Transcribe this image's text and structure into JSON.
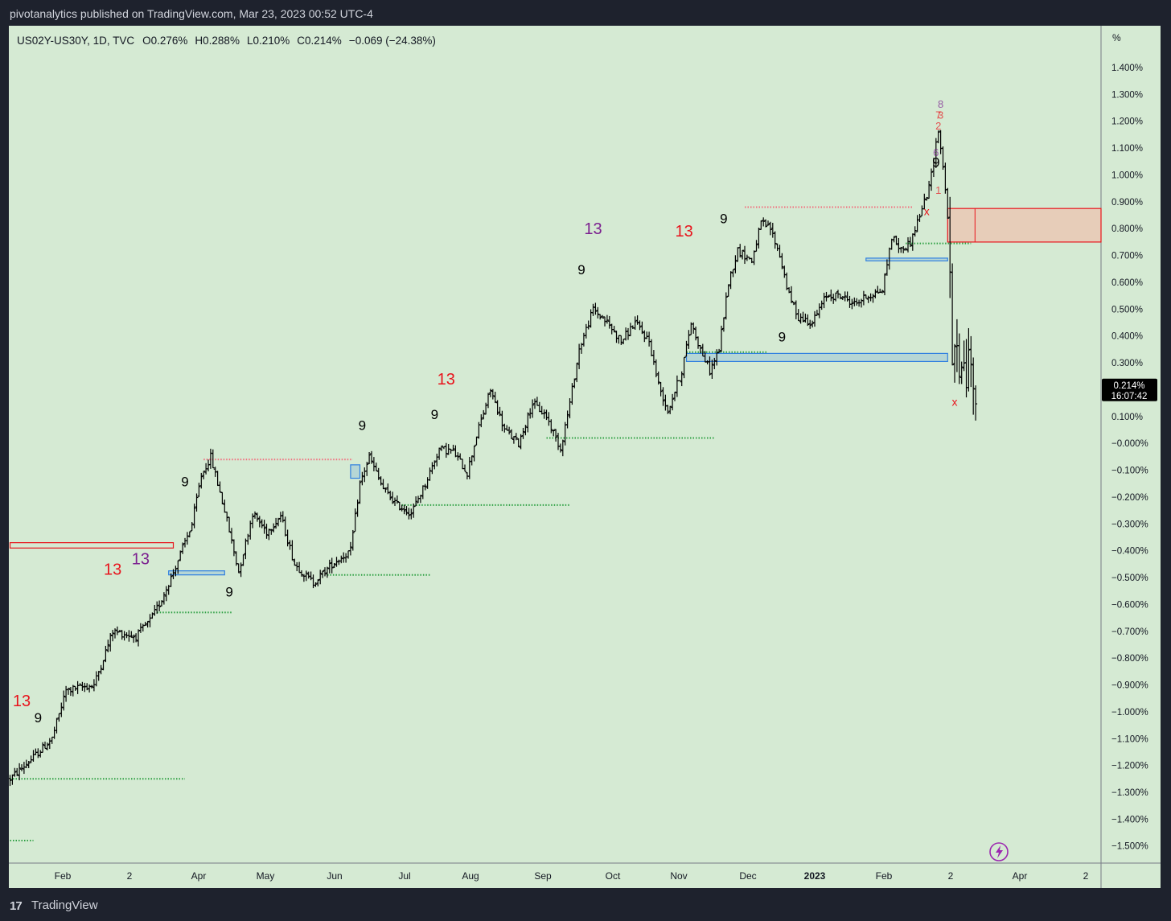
{
  "header": {
    "published": "pivotanalytics published on TradingView.com, Mar 23, 2023 00:52 UTC-4"
  },
  "footer": {
    "brand": "TradingView",
    "logo_icon": "tradingview-logo-icon"
  },
  "chart_data": {
    "type": "ohlc-bar",
    "symbol_line": {
      "symbol": "US02Y-US30Y, 1D, TVC",
      "open_label": "O",
      "open": "0.276%",
      "high_label": "H",
      "high": "0.288%",
      "low_label": "L",
      "low": "0.210%",
      "close_label": "C",
      "close": "0.214%",
      "change": "−0.069 (−24.38%)"
    },
    "price_axis": {
      "unit": "%",
      "ticks": [
        "1.400%",
        "1.300%",
        "1.200%",
        "1.100%",
        "1.000%",
        "0.900%",
        "0.800%",
        "0.700%",
        "0.600%",
        "0.500%",
        "0.400%",
        "0.300%",
        "0.200%",
        "0.100%",
        "−0.000%",
        "−0.100%",
        "−0.200%",
        "−0.300%",
        "−0.400%",
        "−0.500%",
        "−0.600%",
        "−0.700%",
        "−0.800%",
        "−0.900%",
        "−1.000%",
        "−1.100%",
        "−1.200%",
        "−1.300%",
        "−1.400%",
        "−1.500%"
      ],
      "ylim": [
        -1.56,
        1.55
      ]
    },
    "time_axis": {
      "ticks": [
        "Feb",
        "2",
        "Apr",
        "May",
        "Jun",
        "Jul",
        "Aug",
        "Sep",
        "Oct",
        "Nov",
        "Dec",
        "2023",
        "Feb",
        "2",
        "Apr",
        "2"
      ],
      "bold_tick": "2023"
    },
    "last_price": {
      "value": 0.214,
      "label": "0.214%",
      "countdown": "16:07:42"
    },
    "colors": {
      "background": "#d5ead3",
      "bars": "#000000",
      "red_marker": "#e8141c",
      "purple_marker": "#7b1f8f",
      "support_dots": "#2ea043",
      "resistance_dots": "#f26d7d",
      "zone_blue": "#2f7fe0",
      "zone_red": "#e8141c",
      "zone_red_fill": "#e7cdb9"
    },
    "waypoints": [
      {
        "t": 0,
        "v": -1.25
      },
      {
        "t": 10,
        "v": -1.17
      },
      {
        "t": 18,
        "v": -1.1
      },
      {
        "t": 24,
        "v": -0.92
      },
      {
        "t": 36,
        "v": -0.9
      },
      {
        "t": 44,
        "v": -0.7
      },
      {
        "t": 54,
        "v": -0.72
      },
      {
        "t": 60,
        "v": -0.66
      },
      {
        "t": 64,
        "v": -0.6
      },
      {
        "t": 70,
        "v": -0.48
      },
      {
        "t": 78,
        "v": -0.3
      },
      {
        "t": 82,
        "v": -0.12
      },
      {
        "t": 86,
        "v": -0.05
      },
      {
        "t": 92,
        "v": -0.25
      },
      {
        "t": 98,
        "v": -0.48
      },
      {
        "t": 104,
        "v": -0.26
      },
      {
        "t": 110,
        "v": -0.33
      },
      {
        "t": 116,
        "v": -0.27
      },
      {
        "t": 122,
        "v": -0.45
      },
      {
        "t": 130,
        "v": -0.52
      },
      {
        "t": 138,
        "v": -0.45
      },
      {
        "t": 146,
        "v": -0.4
      },
      {
        "t": 150,
        "v": -0.15
      },
      {
        "t": 154,
        "v": -0.05
      },
      {
        "t": 160,
        "v": -0.17
      },
      {
        "t": 166,
        "v": -0.23
      },
      {
        "t": 172,
        "v": -0.26
      },
      {
        "t": 178,
        "v": -0.15
      },
      {
        "t": 184,
        "v": -0.02
      },
      {
        "t": 190,
        "v": -0.03
      },
      {
        "t": 196,
        "v": -0.11
      },
      {
        "t": 200,
        "v": 0.03
      },
      {
        "t": 206,
        "v": 0.2
      },
      {
        "t": 212,
        "v": 0.05
      },
      {
        "t": 218,
        "v": 0.0
      },
      {
        "t": 224,
        "v": 0.15
      },
      {
        "t": 230,
        "v": 0.1
      },
      {
        "t": 236,
        "v": -0.02
      },
      {
        "t": 240,
        "v": 0.15
      },
      {
        "t": 244,
        "v": 0.35
      },
      {
        "t": 250,
        "v": 0.5
      },
      {
        "t": 256,
        "v": 0.45
      },
      {
        "t": 262,
        "v": 0.38
      },
      {
        "t": 268,
        "v": 0.45
      },
      {
        "t": 274,
        "v": 0.38
      },
      {
        "t": 278,
        "v": 0.22
      },
      {
        "t": 282,
        "v": 0.12
      },
      {
        "t": 288,
        "v": 0.27
      },
      {
        "t": 292,
        "v": 0.45
      },
      {
        "t": 296,
        "v": 0.35
      },
      {
        "t": 300,
        "v": 0.27
      },
      {
        "t": 304,
        "v": 0.35
      },
      {
        "t": 308,
        "v": 0.6
      },
      {
        "t": 312,
        "v": 0.72
      },
      {
        "t": 318,
        "v": 0.68
      },
      {
        "t": 322,
        "v": 0.82
      },
      {
        "t": 326,
        "v": 0.8
      },
      {
        "t": 330,
        "v": 0.7
      },
      {
        "t": 334,
        "v": 0.55
      },
      {
        "t": 338,
        "v": 0.47
      },
      {
        "t": 344,
        "v": 0.45
      },
      {
        "t": 350,
        "v": 0.55
      },
      {
        "t": 356,
        "v": 0.55
      },
      {
        "t": 362,
        "v": 0.52
      },
      {
        "t": 368,
        "v": 0.55
      },
      {
        "t": 374,
        "v": 0.57
      },
      {
        "t": 378,
        "v": 0.77
      },
      {
        "t": 382,
        "v": 0.72
      },
      {
        "t": 386,
        "v": 0.75
      },
      {
        "t": 390,
        "v": 0.85
      },
      {
        "t": 394,
        "v": 0.95
      },
      {
        "t": 398,
        "v": 1.17
      },
      {
        "t": 400,
        "v": 1.03
      },
      {
        "t": 402,
        "v": 0.85
      },
      {
        "t": 404,
        "v": 0.3
      },
      {
        "t": 406,
        "v": 0.35
      },
      {
        "t": 408,
        "v": 0.25
      },
      {
        "t": 410,
        "v": 0.27
      },
      {
        "t": 412,
        "v": 0.3
      },
      {
        "t": 414,
        "v": 0.214
      }
    ],
    "setup_labels": [
      {
        "text": "13",
        "color": "red",
        "t": 5,
        "v": -0.98
      },
      {
        "text": "9",
        "color": "black",
        "t": 12,
        "v": -1.04
      },
      {
        "text": "13",
        "color": "red",
        "t": 44,
        "v": -0.49
      },
      {
        "text": "13",
        "color": "purple",
        "t": 56,
        "v": -0.45
      },
      {
        "text": "9",
        "color": "black",
        "t": 75,
        "v": -0.16
      },
      {
        "text": "9",
        "color": "black",
        "t": 94,
        "v": -0.57
      },
      {
        "text": "9",
        "color": "black",
        "t": 151,
        "v": 0.05
      },
      {
        "text": "13",
        "color": "red",
        "t": 187,
        "v": 0.22
      },
      {
        "text": "9",
        "color": "black",
        "t": 182,
        "v": 0.09
      },
      {
        "text": "9",
        "color": "black",
        "t": 245,
        "v": 0.63
      },
      {
        "text": "13",
        "color": "purple",
        "t": 250,
        "v": 0.78
      },
      {
        "text": "13",
        "color": "red",
        "t": 289,
        "v": 0.77
      },
      {
        "text": "9",
        "color": "black",
        "t": 306,
        "v": 0.82
      },
      {
        "text": "9",
        "color": "black",
        "t": 331,
        "v": 0.38
      },
      {
        "text": "9",
        "color": "black",
        "t": 397,
        "v": 1.03
      }
    ],
    "count_labels": [
      {
        "text": "8",
        "color": "purple",
        "t": 399,
        "v": 1.25
      },
      {
        "text": "7",
        "color": "red",
        "t": 398,
        "v": 1.21
      },
      {
        "text": "3",
        "color": "red",
        "t": 399,
        "v": 1.21
      },
      {
        "text": "2",
        "color": "red",
        "t": 398,
        "v": 1.17
      },
      {
        "text": "6",
        "color": "purple",
        "t": 397,
        "v": 1.07
      },
      {
        "text": "1",
        "color": "red",
        "t": 398,
        "v": 0.93
      }
    ],
    "x_marks": [
      {
        "t": 393,
        "v": 0.85
      },
      {
        "t": 405,
        "v": 0.14
      }
    ],
    "support_levels": [
      {
        "from": 0,
        "to": 75,
        "v": -1.25
      },
      {
        "from": 0,
        "to": 10,
        "v": -1.48
      },
      {
        "from": 63,
        "to": 95,
        "v": -0.63
      },
      {
        "from": 136,
        "to": 180,
        "v": -0.49
      },
      {
        "from": 168,
        "to": 240,
        "v": -0.23
      },
      {
        "from": 230,
        "to": 302,
        "v": 0.02
      },
      {
        "from": 290,
        "to": 325,
        "v": 0.34
      },
      {
        "from": 384,
        "to": 412,
        "v": 0.745
      }
    ],
    "resistance_levels": [
      {
        "from": 83,
        "to": 147,
        "v": -0.06
      },
      {
        "from": 315,
        "to": 387,
        "v": 0.88
      }
    ],
    "zones": [
      {
        "color": "red",
        "from": 0,
        "to": 70,
        "top": -0.37,
        "bottom": -0.39
      },
      {
        "color": "blue",
        "from": 68,
        "to": 92,
        "top": -0.475,
        "bottom": -0.49
      },
      {
        "color": "blue",
        "from": 146,
        "to": 150,
        "top": -0.08,
        "bottom": -0.13
      },
      {
        "color": "blue",
        "from": 290,
        "to": 402,
        "top": 0.335,
        "bottom": 0.305
      },
      {
        "color": "blue",
        "from": 367,
        "to": 402,
        "top": 0.69,
        "bottom": 0.68
      },
      {
        "color": "red",
        "from": 402,
        "to": 470,
        "top": 0.875,
        "bottom": 0.75
      }
    ],
    "grid": false,
    "legend": "none"
  }
}
